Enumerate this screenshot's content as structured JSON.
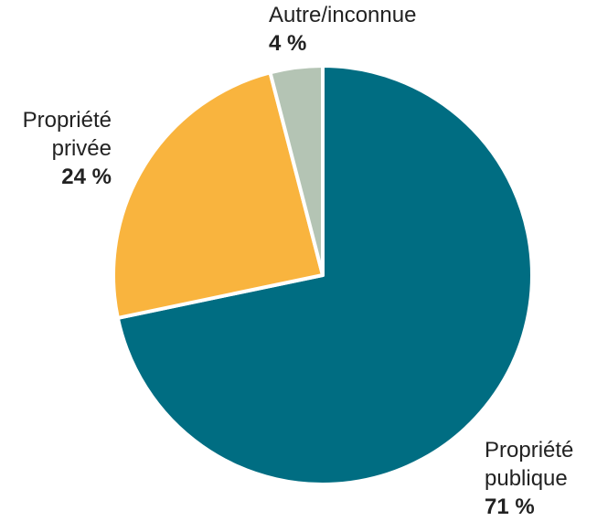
{
  "chart_data": {
    "type": "pie",
    "slices": [
      {
        "label": "Propriété publique",
        "label_lines": [
          "Propriété",
          "publique"
        ],
        "value": 71,
        "value_text": "71 %",
        "color": "#006d82"
      },
      {
        "label": "Propriété privée",
        "label_lines": [
          "Propriété",
          "privée"
        ],
        "value": 24,
        "value_text": "24 %",
        "color": "#f9b43e"
      },
      {
        "label": "Autre/inconnue",
        "label_lines": [
          "Autre/inconnue"
        ],
        "value": 4,
        "value_text": "4 %",
        "color": "#b4c4b4"
      }
    ],
    "start_angle": "12 o'clock",
    "direction": "clockwise",
    "legend": "none",
    "slice_separator_color": "#ffffff"
  }
}
